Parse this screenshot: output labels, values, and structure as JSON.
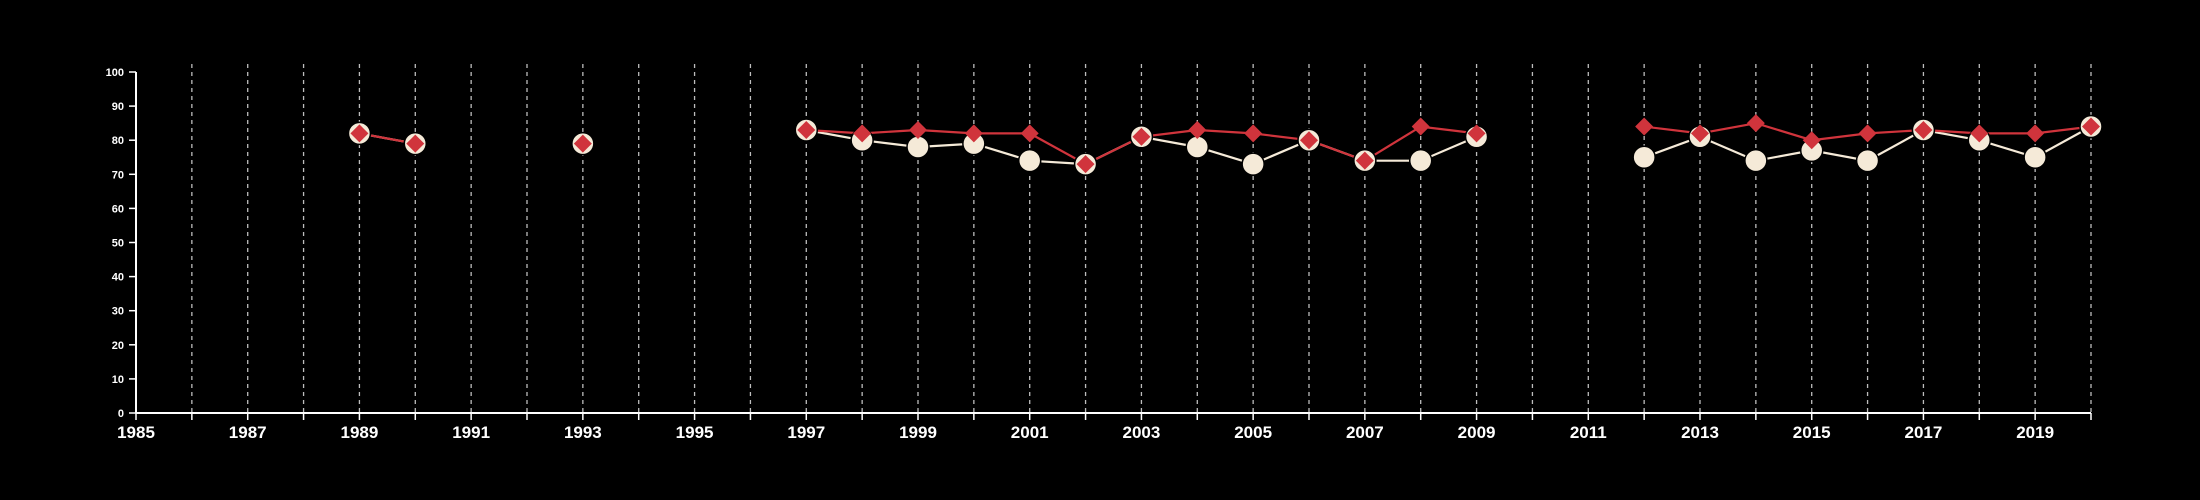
{
  "chart_data": {
    "type": "line",
    "title": "",
    "xlabel": "",
    "ylabel": "",
    "xlim": [
      1985,
      2020
    ],
    "ylim": [
      0,
      100
    ],
    "x_ticks": [
      1985,
      1987,
      1989,
      1991,
      1993,
      1995,
      1997,
      1999,
      2001,
      2003,
      2005,
      2007,
      2009,
      2011,
      2013,
      2015,
      2017,
      2019
    ],
    "y_ticks": [
      0,
      10,
      20,
      30,
      40,
      50,
      60,
      70,
      80,
      90,
      100
    ],
    "vertical_grid": "dashed, every year",
    "background_color": "#000000",
    "series": [
      {
        "marker": "circle",
        "color": "#f5ead8",
        "points": [
          [
            1989,
            82
          ],
          [
            1990,
            79
          ],
          [
            1993,
            79
          ],
          [
            1997,
            83
          ],
          [
            1998,
            80
          ],
          [
            1999,
            78
          ],
          [
            2000,
            79
          ],
          [
            2001,
            74
          ],
          [
            2002,
            73
          ],
          [
            2003,
            81
          ],
          [
            2004,
            78
          ],
          [
            2005,
            73
          ],
          [
            2006,
            80
          ],
          [
            2007,
            74
          ],
          [
            2008,
            74
          ],
          [
            2009,
            81
          ],
          [
            2012,
            75
          ],
          [
            2013,
            81
          ],
          [
            2014,
            74
          ],
          [
            2015,
            77
          ],
          [
            2016,
            74
          ],
          [
            2017,
            83
          ],
          [
            2018,
            80
          ],
          [
            2019,
            75
          ],
          [
            2020,
            84
          ]
        ]
      },
      {
        "marker": "diamond",
        "color": "#d0343c",
        "points": [
          [
            1989,
            82
          ],
          [
            1990,
            79
          ],
          [
            1993,
            79
          ],
          [
            1997,
            83
          ],
          [
            1998,
            82
          ],
          [
            1999,
            83
          ],
          [
            2000,
            82
          ],
          [
            2001,
            82
          ],
          [
            2002,
            73
          ],
          [
            2003,
            81
          ],
          [
            2004,
            83
          ],
          [
            2005,
            82
          ],
          [
            2006,
            80
          ],
          [
            2007,
            74
          ],
          [
            2008,
            84
          ],
          [
            2009,
            82
          ],
          [
            2012,
            84
          ],
          [
            2013,
            82
          ],
          [
            2014,
            85
          ],
          [
            2015,
            80
          ],
          [
            2016,
            82
          ],
          [
            2017,
            83
          ],
          [
            2018,
            82
          ],
          [
            2019,
            82
          ],
          [
            2020,
            84
          ]
        ]
      }
    ]
  }
}
